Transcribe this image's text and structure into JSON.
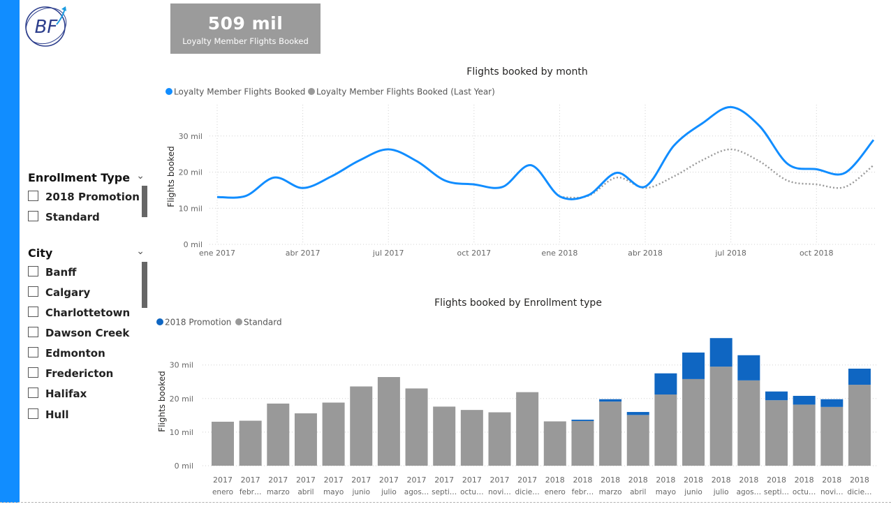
{
  "card": {
    "value": "509 mil",
    "label": "Loyalty Member Flights Booked"
  },
  "logo": {
    "text": "BF"
  },
  "slicers": {
    "enrollment": {
      "title": "Enrollment Type",
      "items": [
        "2018 Promotion",
        "Standard"
      ]
    },
    "city": {
      "title": "City",
      "items": [
        "Banff",
        "Calgary",
        "Charlottetown",
        "Dawson Creek",
        "Edmonton",
        "Fredericton",
        "Halifax",
        "Hull"
      ]
    }
  },
  "colors": {
    "blue": "#118dff",
    "darkblue": "#0f66c2",
    "gray": "#999999",
    "accent_bar": "#118dff"
  },
  "chart_data": [
    {
      "type": "line",
      "title": "Flights booked by month",
      "ylabel": "Flights booked",
      "ylim": [
        0,
        40
      ],
      "y_ticks": [
        "0 mil",
        "10 mil",
        "20 mil",
        "30 mil"
      ],
      "x_ticks": [
        "ene 2017",
        "abr 2017",
        "jul 2017",
        "oct 2017",
        "ene 2018",
        "abr 2018",
        "jul 2018",
        "oct 2018"
      ],
      "x": [
        "2017-01",
        "2017-02",
        "2017-03",
        "2017-04",
        "2017-05",
        "2017-06",
        "2017-07",
        "2017-08",
        "2017-09",
        "2017-10",
        "2017-11",
        "2017-12",
        "2018-01",
        "2018-02",
        "2018-03",
        "2018-04",
        "2018-05",
        "2018-06",
        "2018-07",
        "2018-08",
        "2018-09",
        "2018-10",
        "2018-11",
        "2018-12"
      ],
      "legend_position": "top-left",
      "series": [
        {
          "name": "Loyalty Member Flights Booked",
          "values": [
            13.1,
            13.4,
            18.5,
            15.6,
            18.8,
            23.3,
            26.3,
            23.0,
            17.6,
            16.6,
            15.9,
            21.9,
            13.3,
            13.6,
            19.8,
            16.0,
            27.3,
            33.5,
            38.0,
            32.8,
            22.2,
            20.8,
            19.8,
            28.9
          ]
        },
        {
          "name": "Loyalty Member Flights Booked (Last Year)",
          "values": [
            null,
            null,
            null,
            null,
            null,
            null,
            null,
            null,
            null,
            null,
            null,
            null,
            13.1,
            13.4,
            18.5,
            15.6,
            18.8,
            23.3,
            26.3,
            23.0,
            17.6,
            16.6,
            15.9,
            21.9
          ]
        }
      ]
    },
    {
      "type": "bar",
      "title": "Flights booked by Enrollment type",
      "ylabel": "Flights booked",
      "ylim": [
        0,
        40
      ],
      "y_ticks": [
        "0 mil",
        "10 mil",
        "20 mil",
        "30 mil"
      ],
      "legend_position": "top-left",
      "categories_year": [
        "2017",
        "2017",
        "2017",
        "2017",
        "2017",
        "2017",
        "2017",
        "2017",
        "2017",
        "2017",
        "2017",
        "2017",
        "2018",
        "2018",
        "2018",
        "2018",
        "2018",
        "2018",
        "2018",
        "2018",
        "2018",
        "2018",
        "2018",
        "2018"
      ],
      "categories_month": [
        "enero",
        "febr…",
        "marzo",
        "abril",
        "mayo",
        "junio",
        "julio",
        "agos…",
        "septi…",
        "octu…",
        "novi…",
        "dicie…",
        "enero",
        "febr…",
        "marzo",
        "abril",
        "mayo",
        "junio",
        "julio",
        "agos…",
        "septi…",
        "octu…",
        "novi…",
        "dicie…"
      ],
      "series": [
        {
          "name": "Standard",
          "values": [
            13.1,
            13.4,
            18.5,
            15.6,
            18.8,
            23.6,
            26.4,
            23.0,
            17.6,
            16.6,
            15.9,
            21.9,
            13.2,
            13.3,
            19.1,
            15.1,
            21.2,
            25.8,
            29.5,
            25.4,
            19.5,
            18.2,
            17.5,
            24.1
          ]
        },
        {
          "name": "2018 Promotion",
          "values": [
            0,
            0,
            0,
            0,
            0,
            0,
            0,
            0,
            0,
            0,
            0,
            0,
            0,
            0.4,
            0.7,
            0.9,
            6.3,
            7.9,
            8.5,
            7.5,
            2.6,
            2.6,
            2.3,
            4.8
          ]
        }
      ]
    }
  ]
}
